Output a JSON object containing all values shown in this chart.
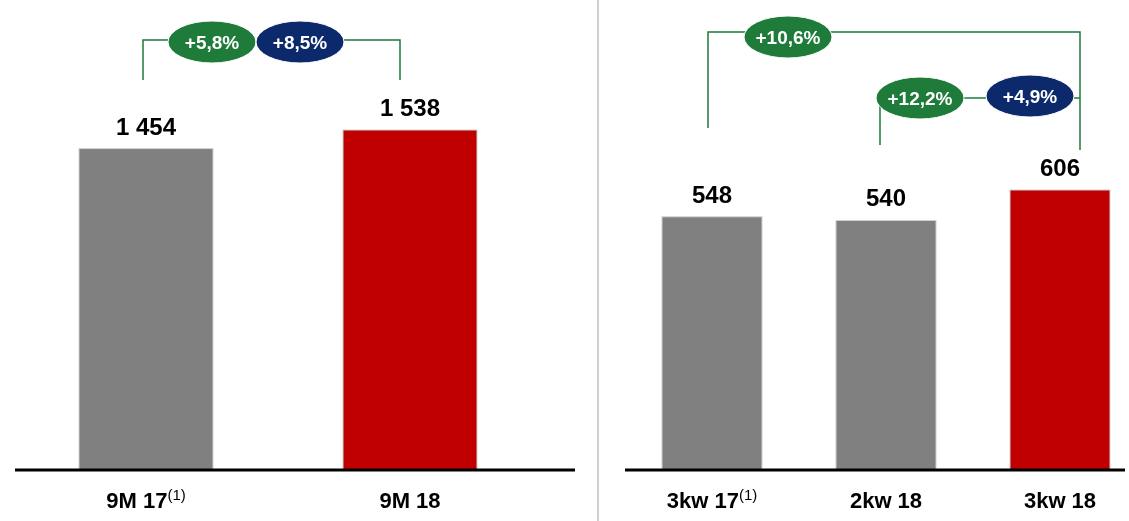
{
  "chart_data": [
    {
      "type": "bar",
      "categories": [
        "9M 17$^{(1)}$",
        "9M 18"
      ],
      "colors": [
        "#808080",
        "#c00000"
      ],
      "values": [
        1454,
        1538
      ],
      "value_labels": [
        "1 454",
        "1 538"
      ],
      "annotations": [
        "+5,8%",
        "+8,5%"
      ]
    },
    {
      "type": "bar",
      "categories": [
        "3kw 17$^{(1)}$",
        "2kw 18",
        "3kw 18"
      ],
      "colors": [
        "#808080",
        "#808080",
        "#c00000"
      ],
      "values": [
        548,
        540,
        606
      ],
      "value_labels": [
        "548",
        "540",
        "606"
      ],
      "annotations": [
        "+10,6%",
        "+12,2%",
        "+4,9%"
      ]
    }
  ]
}
